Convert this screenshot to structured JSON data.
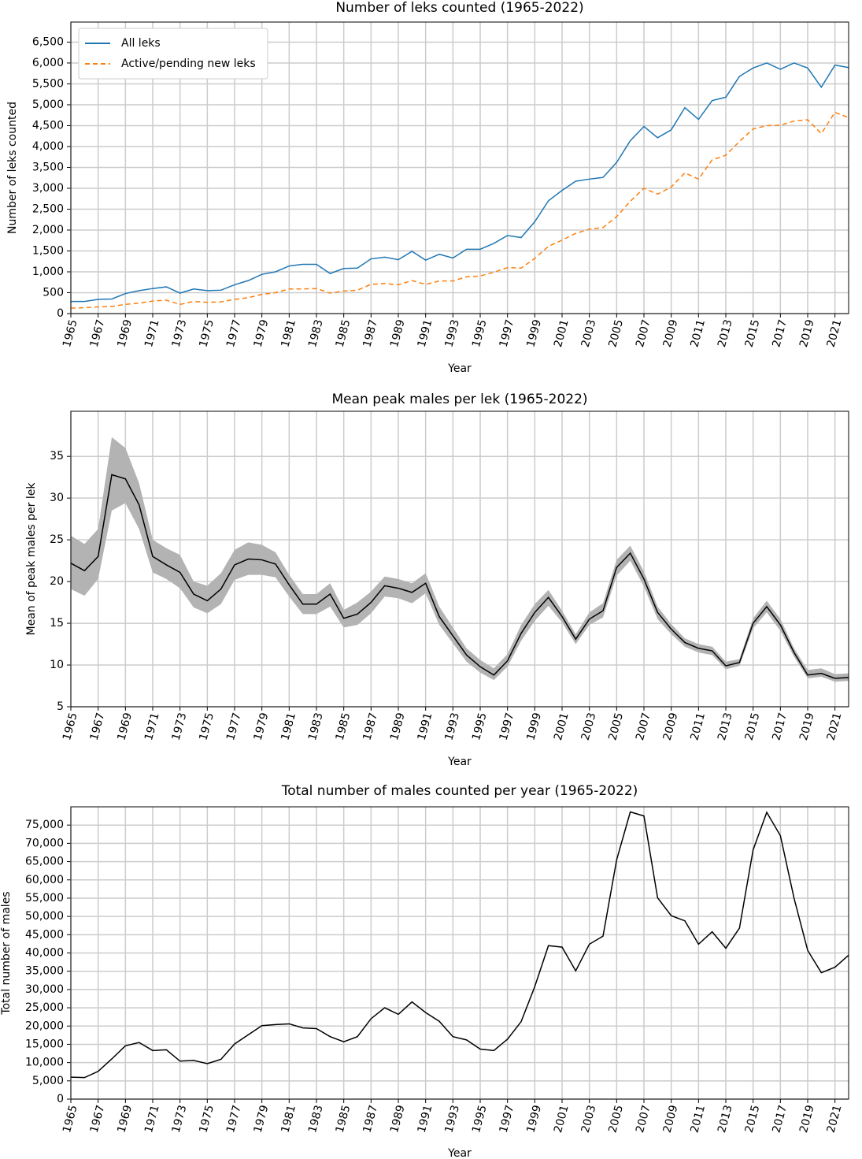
{
  "chart_data": [
    {
      "type": "line",
      "title": "Number of leks counted (1965-2022)",
      "x_label": "Year",
      "y_label": "Number of leks counted",
      "x": [
        1965,
        1966,
        1967,
        1968,
        1969,
        1970,
        1971,
        1972,
        1973,
        1974,
        1975,
        1976,
        1977,
        1978,
        1979,
        1980,
        1981,
        1982,
        1983,
        1984,
        1985,
        1986,
        1987,
        1988,
        1989,
        1990,
        1991,
        1992,
        1993,
        1994,
        1995,
        1996,
        1997,
        1998,
        1999,
        2000,
        2001,
        2002,
        2003,
        2004,
        2005,
        2006,
        2007,
        2008,
        2009,
        2010,
        2011,
        2012,
        2013,
        2014,
        2015,
        2016,
        2017,
        2018,
        2019,
        2020,
        2021,
        2022
      ],
      "series": [
        {
          "name": "All leks",
          "color": "#1f77b4",
          "style": "solid",
          "values": [
            290,
            290,
            340,
            350,
            480,
            550,
            600,
            640,
            490,
            590,
            550,
            560,
            690,
            790,
            940,
            1000,
            1140,
            1180,
            1180,
            960,
            1080,
            1090,
            1310,
            1350,
            1290,
            1490,
            1280,
            1420,
            1330,
            1540,
            1540,
            1680,
            1870,
            1820,
            2200,
            2700,
            2950,
            3170,
            3220,
            3260,
            3620,
            4140,
            4480,
            4210,
            4400,
            4930,
            4650,
            5100,
            5180,
            5680,
            5880,
            6000,
            5850,
            6000,
            5880,
            5420,
            5950,
            5890
          ]
        },
        {
          "name": "Active/pending new leks",
          "color": "#ff7f0e",
          "style": "dashed",
          "values": [
            130,
            140,
            160,
            170,
            220,
            250,
            300,
            320,
            220,
            290,
            270,
            280,
            340,
            380,
            460,
            500,
            590,
            590,
            600,
            490,
            540,
            560,
            700,
            720,
            690,
            790,
            700,
            780,
            780,
            880,
            900,
            990,
            1100,
            1090,
            1320,
            1610,
            1760,
            1920,
            2020,
            2060,
            2320,
            2690,
            3000,
            2860,
            3030,
            3370,
            3220,
            3680,
            3790,
            4120,
            4420,
            4500,
            4510,
            4610,
            4640,
            4310,
            4820,
            4690
          ]
        }
      ],
      "xlim": [
        1965,
        2022
      ],
      "xticks": [
        1965,
        1967,
        1969,
        1971,
        1973,
        1975,
        1977,
        1979,
        1981,
        1983,
        1985,
        1987,
        1989,
        1991,
        1993,
        1995,
        1997,
        1999,
        2001,
        2003,
        2005,
        2007,
        2009,
        2011,
        2013,
        2015,
        2017,
        2019,
        2021
      ],
      "ylim": [
        0,
        6980
      ],
      "yticks": [
        0,
        500,
        {
          "value": 1000,
          "label": "1,000"
        },
        {
          "value": 1500,
          "label": "1,500"
        },
        {
          "value": 2000,
          "label": "2,000"
        },
        {
          "value": 2500,
          "label": "2,500"
        },
        {
          "value": 3000,
          "label": "3,000"
        },
        {
          "value": 3500,
          "label": "3,500"
        },
        {
          "value": 4000,
          "label": "4,000"
        },
        {
          "value": 4500,
          "label": "4,500"
        },
        {
          "value": 5000,
          "label": "5,000"
        },
        {
          "value": 5500,
          "label": "5,500"
        },
        {
          "value": 6000,
          "label": "6,000"
        },
        {
          "value": 6500,
          "label": "6,500"
        }
      ],
      "grid": true,
      "legend": "upper left"
    },
    {
      "type": "line",
      "title": "Mean peak males per lek (1965-2022)",
      "x_label": "Year",
      "y_label": "Mean of peak males per lek",
      "x": [
        1965,
        1966,
        1967,
        1968,
        1969,
        1970,
        1971,
        1972,
        1973,
        1974,
        1975,
        1976,
        1977,
        1978,
        1979,
        1980,
        1981,
        1982,
        1983,
        1984,
        1985,
        1986,
        1987,
        1988,
        1989,
        1990,
        1991,
        1992,
        1993,
        1994,
        1995,
        1996,
        1997,
        1998,
        1999,
        2000,
        2001,
        2002,
        2003,
        2004,
        2005,
        2006,
        2007,
        2008,
        2009,
        2010,
        2011,
        2012,
        2013,
        2014,
        2015,
        2016,
        2017,
        2018,
        2019,
        2020,
        2021,
        2022
      ],
      "values": [
        22.2,
        21.3,
        23.0,
        32.8,
        32.3,
        29.2,
        23.0,
        22.0,
        21.1,
        18.5,
        17.7,
        19.1,
        22.0,
        22.7,
        22.6,
        22.1,
        19.6,
        17.3,
        17.3,
        18.5,
        15.6,
        16.1,
        17.5,
        19.5,
        19.2,
        18.7,
        19.8,
        15.8,
        13.5,
        11.2,
        9.8,
        8.8,
        10.5,
        13.8,
        16.3,
        18.1,
        15.8,
        13.1,
        15.5,
        16.5,
        21.7,
        23.4,
        20.3,
        16.3,
        14.3,
        12.7,
        12.0,
        11.7,
        9.9,
        10.3,
        15.0,
        17.0,
        14.8,
        11.5,
        8.8,
        9.0,
        8.4,
        8.5
      ],
      "color": "#000000",
      "ci_upper": [
        25.5,
        24.5,
        26.3,
        37.3,
        36.0,
        31.8,
        25.0,
        24.0,
        23.2,
        20.0,
        19.5,
        21.0,
        23.8,
        24.7,
        24.4,
        23.5,
        20.8,
        18.5,
        18.5,
        19.8,
        16.6,
        17.5,
        18.8,
        20.6,
        20.3,
        19.8,
        21.0,
        17.0,
        14.5,
        12.0,
        10.6,
        9.6,
        11.3,
        14.8,
        17.3,
        19.0,
        16.5,
        13.7,
        16.3,
        17.4,
        22.6,
        24.3,
        21.2,
        17.0,
        14.9,
        13.2,
        12.5,
        12.2,
        10.4,
        10.7,
        15.6,
        17.7,
        15.5,
        12.0,
        9.4,
        9.6,
        8.9,
        9.0
      ],
      "ci_lower": [
        19.1,
        18.3,
        20.3,
        28.5,
        29.4,
        26.3,
        21.1,
        20.3,
        19.2,
        16.9,
        16.2,
        17.3,
        20.2,
        20.8,
        20.8,
        20.5,
        18.2,
        16.1,
        16.1,
        17.0,
        14.5,
        14.8,
        16.2,
        18.2,
        18.0,
        17.4,
        18.6,
        14.8,
        12.6,
        10.4,
        9.1,
        8.2,
        9.8,
        12.9,
        15.3,
        17.1,
        15.1,
        12.5,
        14.8,
        15.7,
        20.7,
        22.5,
        19.4,
        15.5,
        13.7,
        12.2,
        11.5,
        11.2,
        9.5,
        9.9,
        14.4,
        16.3,
        14.1,
        11.0,
        8.4,
        8.6,
        8.0,
        8.1
      ],
      "band_color": "#b3b3b3",
      "xlim": [
        1965,
        2022
      ],
      "xticks": [
        1965,
        1967,
        1969,
        1971,
        1973,
        1975,
        1977,
        1979,
        1981,
        1983,
        1985,
        1987,
        1989,
        1991,
        1993,
        1995,
        1997,
        1999,
        2001,
        2003,
        2005,
        2007,
        2009,
        2011,
        2013,
        2015,
        2017,
        2019,
        2021
      ],
      "ylim": [
        5,
        40.4
      ],
      "yticks": [
        5,
        10,
        15,
        20,
        25,
        30,
        35
      ],
      "grid": true
    },
    {
      "type": "line",
      "title": "Total number of males counted per year (1965-2022)",
      "x_label": "Year",
      "y_label": "Total number of males",
      "x": [
        1965,
        1966,
        1967,
        1968,
        1969,
        1970,
        1971,
        1972,
        1973,
        1974,
        1975,
        1976,
        1977,
        1978,
        1979,
        1980,
        1981,
        1982,
        1983,
        1984,
        1985,
        1986,
        1987,
        1988,
        1989,
        1990,
        1991,
        1992,
        1993,
        1994,
        1995,
        1996,
        1997,
        1998,
        1999,
        2000,
        2001,
        2002,
        2003,
        2004,
        2005,
        2006,
        2007,
        2008,
        2009,
        2010,
        2011,
        2012,
        2013,
        2014,
        2015,
        2016,
        2017,
        2018,
        2019,
        2020,
        2021,
        2022
      ],
      "values": [
        6000,
        5900,
        7600,
        11000,
        14600,
        15500,
        13300,
        13500,
        10400,
        10600,
        9700,
        10900,
        15100,
        17600,
        20100,
        20400,
        20600,
        19500,
        19300,
        17100,
        15700,
        17100,
        22000,
        25000,
        23200,
        26600,
        23700,
        21300,
        17100,
        16200,
        13700,
        13300,
        16400,
        21200,
        30800,
        42000,
        41600,
        35100,
        42400,
        44600,
        65500,
        78600,
        77500,
        55100,
        50200,
        48800,
        42400,
        45800,
        41300,
        46800,
        68200,
        78500,
        72100,
        55000,
        40700,
        34600,
        36100,
        39400
      ],
      "color": "#000000",
      "xlim": [
        1965,
        2022
      ],
      "xticks": [
        1965,
        1967,
        1969,
        1971,
        1973,
        1975,
        1977,
        1979,
        1981,
        1983,
        1985,
        1987,
        1989,
        1991,
        1993,
        1995,
        1997,
        1999,
        2001,
        2003,
        2005,
        2007,
        2009,
        2011,
        2013,
        2015,
        2017,
        2019,
        2021
      ],
      "ylim": [
        0,
        80000
      ],
      "yticks": [
        0,
        {
          "value": 5000,
          "label": "5,000"
        },
        {
          "value": 10000,
          "label": "10,000"
        },
        {
          "value": 15000,
          "label": "15,000"
        },
        {
          "value": 20000,
          "label": "20,000"
        },
        {
          "value": 25000,
          "label": "25,000"
        },
        {
          "value": 30000,
          "label": "30,000"
        },
        {
          "value": 35000,
          "label": "35,000"
        },
        {
          "value": 40000,
          "label": "40,000"
        },
        {
          "value": 45000,
          "label": "45,000"
        },
        {
          "value": 50000,
          "label": "50,000"
        },
        {
          "value": 55000,
          "label": "55,000"
        },
        {
          "value": 60000,
          "label": "60,000"
        },
        {
          "value": 65000,
          "label": "65,000"
        },
        {
          "value": 70000,
          "label": "70,000"
        },
        {
          "value": 75000,
          "label": "75,000"
        }
      ],
      "grid": true
    }
  ]
}
